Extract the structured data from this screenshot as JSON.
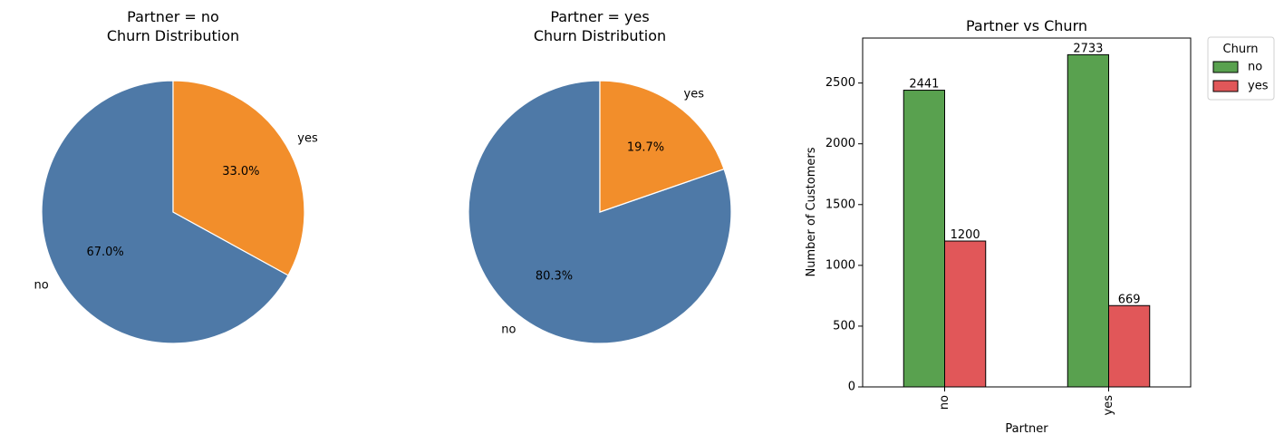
{
  "chart_data": [
    {
      "type": "pie",
      "title_line1": "Partner = no",
      "title_line2": "Churn Distribution",
      "labels": [
        "no",
        "yes"
      ],
      "values": [
        67.0,
        33.0
      ],
      "value_labels": [
        "67.0%",
        "33.0%"
      ],
      "colors": [
        "#4e79a7",
        "#f28e2b"
      ],
      "start_angle_deg": 90
    },
    {
      "type": "pie",
      "title_line1": "Partner = yes",
      "title_line2": "Churn Distribution",
      "labels": [
        "no",
        "yes"
      ],
      "values": [
        80.3,
        19.7
      ],
      "value_labels": [
        "80.3%",
        "19.7%"
      ],
      "colors": [
        "#4e79a7",
        "#f28e2b"
      ],
      "start_angle_deg": 90
    },
    {
      "type": "bar",
      "title": "Partner vs Churn",
      "xlabel": "Partner",
      "ylabel": "Number of Customers",
      "categories": [
        "no",
        "yes"
      ],
      "series": [
        {
          "name": "no",
          "values": [
            2441,
            2733
          ],
          "color": "#59a14f"
        },
        {
          "name": "yes",
          "values": [
            1200,
            669
          ],
          "color": "#e15759"
        }
      ],
      "ylim": [
        0,
        2870
      ],
      "yticks": [
        0,
        500,
        1000,
        1500,
        2000,
        2500
      ],
      "legend_title": "Churn",
      "legend_position": "outside-top-right",
      "grid": false
    }
  ]
}
